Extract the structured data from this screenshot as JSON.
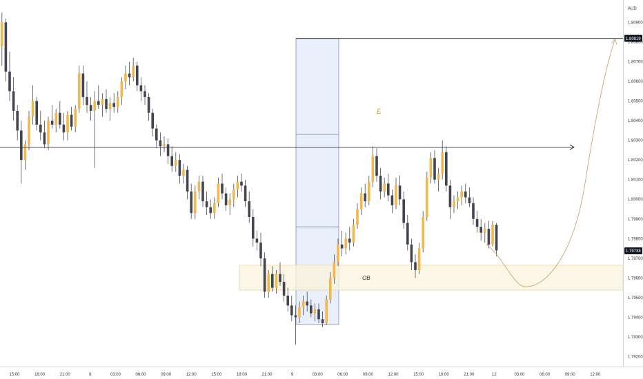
{
  "chart_data": {
    "type": "candlestick",
    "currency_label": "AUD",
    "y_ticks": [
      "1.80900",
      "1.80800",
      "1.80700",
      "1.80600",
      "1.80500",
      "1.80400",
      "1.80300",
      "1.80200",
      "1.80100",
      "1.80000",
      "1.79900",
      "1.79800",
      "1.79700",
      "1.79600",
      "1.79500",
      "1.79400",
      "1.79300",
      "1.79200"
    ],
    "x_ticks": [
      "15:00",
      "18:00",
      "21:00",
      "8",
      "03:00",
      "06:00",
      "09:00",
      "12:00",
      "15:00",
      "18:00",
      "21:00",
      "9",
      "03:00",
      "06:00",
      "09:00",
      "12:00",
      "15:00",
      "18:00",
      "21:00",
      "12",
      "03:00",
      "06:00",
      "09:00",
      "12:00"
    ],
    "ylim": [
      1.7917,
      1.81
    ],
    "price_badges": [
      {
        "label": "1.80819",
        "value": 1.80819
      },
      {
        "label": "1.79738",
        "value": 1.79738
      }
    ],
    "horizontal_lines": [
      {
        "value": 1.80819
      },
      {
        "value": 1.80265,
        "arrow": true
      }
    ],
    "order_block_zone": {
      "label": "OB",
      "top": 1.79665,
      "bottom": 1.79538
    },
    "range_annotation": {
      "symbol": "£",
      "top": 1.80819,
      "bottom": 1.79363,
      "levels": [
        1.8033,
        1.7986
      ]
    },
    "projection": {
      "start": 1.79772,
      "low": 1.79555,
      "target": 1.80819
    },
    "colors": {
      "up": "#f2b84b",
      "down": "#434651",
      "wick": "#4a4a4a",
      "line": "#2a2e39",
      "zone_fill": "#faf3dc",
      "zone_border": "#e8d7a0",
      "range_fill": "#e4ebf9",
      "range_border": "#7d8fb5",
      "projection": "#c9a571",
      "symbol": "#e39b1f",
      "badge": "#131722"
    },
    "candles": [
      [
        1.8078,
        1.8095,
        1.8068,
        1.809
      ],
      [
        1.809,
        1.8092,
        1.806,
        1.8065
      ],
      [
        1.8065,
        1.8075,
        1.805,
        1.8055
      ],
      [
        1.8055,
        1.8062,
        1.804,
        1.8045
      ],
      [
        1.8045,
        1.8048,
        1.803,
        1.8035
      ],
      [
        1.8035,
        1.804,
        1.8008,
        1.802
      ],
      [
        1.802,
        1.803,
        1.8015,
        1.8028
      ],
      [
        1.8028,
        1.8045,
        1.8025,
        1.8042
      ],
      [
        1.8042,
        1.8058,
        1.8038,
        1.805
      ],
      [
        1.805,
        1.8052,
        1.8035,
        1.8038
      ],
      [
        1.8038,
        1.8045,
        1.803,
        1.8034
      ],
      [
        1.8034,
        1.804,
        1.8026,
        1.8028
      ],
      [
        1.8028,
        1.8042,
        1.8025,
        1.804
      ],
      [
        1.804,
        1.8048,
        1.8036,
        1.8038
      ],
      [
        1.8038,
        1.8046,
        1.8034,
        1.8044
      ],
      [
        1.8044,
        1.805,
        1.8036,
        1.8038
      ],
      [
        1.8038,
        1.8044,
        1.803,
        1.8034
      ],
      [
        1.8034,
        1.8045,
        1.803,
        1.8043
      ],
      [
        1.8043,
        1.8047,
        1.8035,
        1.8037
      ],
      [
        1.8037,
        1.8048,
        1.8034,
        1.8046
      ],
      [
        1.8046,
        1.8068,
        1.8044,
        1.8064
      ],
      [
        1.8064,
        1.8068,
        1.8048,
        1.8052
      ],
      [
        1.8052,
        1.806,
        1.8044,
        1.8048
      ],
      [
        1.8048,
        1.8052,
        1.804,
        1.8045
      ],
      [
        1.8045,
        1.8055,
        1.8016,
        1.805
      ],
      [
        1.805,
        1.8058,
        1.8046,
        1.8048
      ],
      [
        1.8048,
        1.8054,
        1.8042,
        1.8051
      ],
      [
        1.8051,
        1.8056,
        1.8044,
        1.8046
      ],
      [
        1.8046,
        1.8052,
        1.804,
        1.8049
      ],
      [
        1.8049,
        1.8054,
        1.8044,
        1.8047
      ],
      [
        1.8047,
        1.8055,
        1.8044,
        1.8052
      ],
      [
        1.8052,
        1.8062,
        1.8048,
        1.806
      ],
      [
        1.806,
        1.8068,
        1.8056,
        1.8064
      ],
      [
        1.8064,
        1.807,
        1.8058,
        1.8062
      ],
      [
        1.8062,
        1.8072,
        1.806,
        1.8068
      ],
      [
        1.8068,
        1.807,
        1.8055,
        1.8058
      ],
      [
        1.8058,
        1.8062,
        1.805,
        1.8055
      ],
      [
        1.8055,
        1.8058,
        1.8048,
        1.8052
      ],
      [
        1.8052,
        1.8054,
        1.804,
        1.8044
      ],
      [
        1.8044,
        1.8046,
        1.8032,
        1.8036
      ],
      [
        1.8036,
        1.8038,
        1.8026,
        1.803
      ],
      [
        1.803,
        1.8034,
        1.8022,
        1.8027
      ],
      [
        1.8027,
        1.8032,
        1.8024,
        1.8028
      ],
      [
        1.8028,
        1.8031,
        1.8018,
        1.8022
      ],
      [
        1.8022,
        1.8027,
        1.8014,
        1.8017
      ],
      [
        1.8017,
        1.8024,
        1.8014,
        1.802
      ],
      [
        1.802,
        1.8023,
        1.8008,
        1.8012
      ],
      [
        1.8012,
        1.8018,
        1.8008,
        1.8015
      ],
      [
        1.8015,
        1.8017,
        1.8,
        1.8004
      ],
      [
        1.8004,
        1.8008,
        1.799,
        1.7993
      ],
      [
        1.7993,
        1.8007,
        1.799,
        1.8004
      ],
      [
        1.8004,
        1.8012,
        1.8,
        1.8009
      ],
      [
        1.8009,
        1.8012,
        1.7996,
        1.7999
      ],
      [
        1.7999,
        1.8004,
        1.7992,
        1.7996
      ],
      [
        1.7996,
        1.8,
        1.799,
        1.7993
      ],
      [
        1.7993,
        1.8001,
        1.799,
        1.7998
      ],
      [
        1.7998,
        1.8011,
        1.7996,
        1.8008
      ],
      [
        1.8008,
        1.8013,
        1.8,
        1.8003
      ],
      [
        1.8003,
        1.8006,
        1.7994,
        1.7997
      ],
      [
        1.7997,
        1.8003,
        1.7992,
        1.8
      ],
      [
        1.8,
        1.8008,
        1.7996,
        1.8005
      ],
      [
        1.8005,
        1.8012,
        1.8001,
        1.8009
      ],
      [
        1.8009,
        1.8013,
        1.8004,
        1.8007
      ],
      [
        1.8007,
        1.801,
        1.7996,
        1.7999
      ],
      [
        1.7999,
        1.8004,
        1.7988,
        1.7991
      ],
      [
        1.7991,
        1.7995,
        1.7976,
        1.798
      ],
      [
        1.798,
        1.7984,
        1.7974,
        1.7978
      ],
      [
        1.7978,
        1.7983,
        1.7966,
        1.797
      ],
      [
        1.797,
        1.7973,
        1.795,
        1.7953
      ],
      [
        1.7953,
        1.7964,
        1.795,
        1.7962
      ],
      [
        1.7962,
        1.7966,
        1.7953,
        1.7955
      ],
      [
        1.7955,
        1.7964,
        1.7952,
        1.7962
      ],
      [
        1.7962,
        1.7968,
        1.7956,
        1.7958
      ],
      [
        1.7958,
        1.7962,
        1.7948,
        1.7951
      ],
      [
        1.7951,
        1.7955,
        1.7943,
        1.7946
      ],
      [
        1.7946,
        1.7951,
        1.7938,
        1.7941
      ],
      [
        1.7941,
        1.7946,
        1.7926,
        1.794
      ],
      [
        1.794,
        1.7948,
        1.7937,
        1.7945
      ],
      [
        1.7945,
        1.7951,
        1.7941,
        1.7948
      ],
      [
        1.7948,
        1.7953,
        1.7943,
        1.7946
      ],
      [
        1.7946,
        1.7949,
        1.794,
        1.7942
      ],
      [
        1.7942,
        1.7947,
        1.7938,
        1.7944
      ],
      [
        1.7944,
        1.7947,
        1.7937,
        1.7939
      ],
      [
        1.7939,
        1.7943,
        1.7935,
        1.7937
      ],
      [
        1.7937,
        1.7951,
        1.7936,
        1.7949
      ],
      [
        1.7949,
        1.7963,
        1.7947,
        1.796
      ],
      [
        1.796,
        1.7972,
        1.7957,
        1.7968
      ],
      [
        1.7968,
        1.798,
        1.7966,
        1.7977
      ],
      [
        1.7977,
        1.7984,
        1.7971,
        1.7975
      ],
      [
        1.7975,
        1.7983,
        1.7972,
        1.798
      ],
      [
        1.798,
        1.7986,
        1.7974,
        1.7978
      ],
      [
        1.7978,
        1.799,
        1.7976,
        1.7987
      ],
      [
        1.7987,
        1.7998,
        1.7985,
        1.7995
      ],
      [
        1.7995,
        1.8006,
        1.7992,
        1.8003
      ],
      [
        1.8003,
        1.8008,
        1.7996,
        1.7999
      ],
      [
        1.7999,
        1.8012,
        1.7997,
        1.8009
      ],
      [
        1.8009,
        1.8027,
        1.8006,
        1.8022
      ],
      [
        1.8022,
        1.8026,
        1.8009,
        1.8012
      ],
      [
        1.8012,
        1.8016,
        1.8,
        1.8004
      ],
      [
        1.8004,
        1.8011,
        1.8001,
        1.8008
      ],
      [
        1.8008,
        1.8013,
        1.7999,
        1.8002
      ],
      [
        1.8002,
        1.8005,
        1.7993,
        1.7997
      ],
      [
        1.7997,
        1.8011,
        1.7995,
        1.8007
      ],
      [
        1.8007,
        1.8012,
        1.7997,
        1.8
      ],
      [
        1.8,
        1.8004,
        1.7985,
        1.7988
      ],
      [
        1.7988,
        1.7992,
        1.7974,
        1.7977
      ],
      [
        1.7977,
        1.798,
        1.7964,
        1.7968
      ],
      [
        1.7968,
        1.7972,
        1.796,
        1.7964
      ],
      [
        1.7964,
        1.7978,
        1.7962,
        1.7975
      ],
      [
        1.7975,
        1.7994,
        1.7973,
        1.7991
      ],
      [
        1.7991,
        1.8014,
        1.7989,
        1.8011
      ],
      [
        1.8011,
        1.8024,
        1.8008,
        1.8021
      ],
      [
        1.8021,
        1.8025,
        1.8008,
        1.801
      ],
      [
        1.801,
        1.8016,
        1.8004,
        1.8013
      ],
      [
        1.8013,
        1.803,
        1.801,
        1.8024
      ],
      [
        1.8024,
        1.8027,
        1.8004,
        1.8007
      ],
      [
        1.8007,
        1.801,
        1.799,
        1.7996
      ],
      [
        1.7996,
        1.8002,
        1.7993,
        1.7999
      ],
      [
        1.7999,
        1.8004,
        1.7995,
        1.8001
      ],
      [
        1.8001,
        1.8007,
        1.7997,
        1.8004
      ],
      [
        1.8004,
        1.8008,
        1.7998,
        1.8001
      ],
      [
        1.8001,
        1.8006,
        1.7996,
        1.7998
      ],
      [
        1.7998,
        1.8001,
        1.7987,
        1.799
      ],
      [
        1.799,
        1.7994,
        1.7983,
        1.7986
      ],
      [
        1.7986,
        1.799,
        1.7979,
        1.7983
      ],
      [
        1.7983,
        1.7988,
        1.7978,
        1.7985
      ],
      [
        1.7985,
        1.7989,
        1.7975,
        1.7977
      ],
      [
        1.7977,
        1.7989,
        1.7976,
        1.7987
      ],
      [
        1.7987,
        1.7988,
        1.7971,
        1.7974
      ]
    ]
  }
}
